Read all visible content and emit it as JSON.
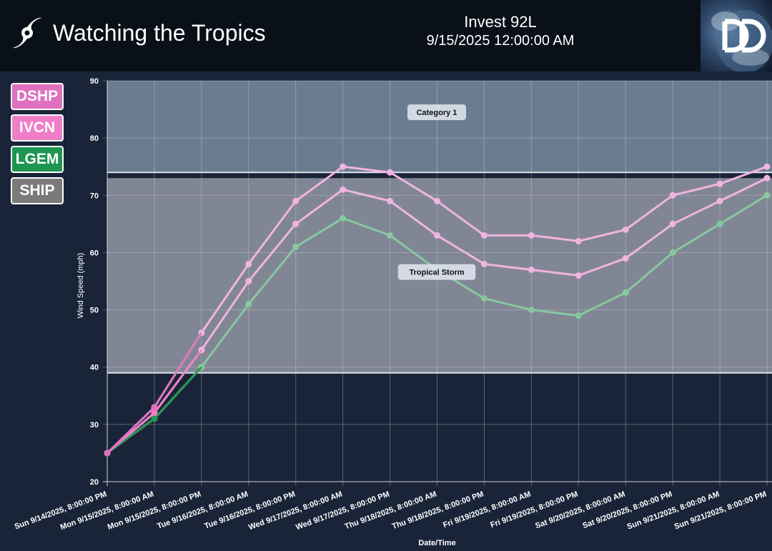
{
  "header": {
    "app_title": "Watching the Tropics",
    "storm_name": "Invest 92L",
    "timestamp": "9/15/2025 12:00:00 AM",
    "logo_text": "DD"
  },
  "legend": [
    {
      "label": "DSHP",
      "color": "#e070c0"
    },
    {
      "label": "IVCN",
      "color": "#ef7ec8"
    },
    {
      "label": "LGEM",
      "color": "#1e9650"
    },
    {
      "label": "SHIP",
      "color": "#7a7a7a"
    }
  ],
  "chart_data": {
    "type": "line",
    "xlabel": "Date/Time",
    "ylabel": "Wind Speed (mph)",
    "ylim": [
      20,
      90
    ],
    "yticks": [
      20,
      30,
      40,
      50,
      60,
      70,
      80,
      90
    ],
    "grid": true,
    "categories": [
      "Sun 9/14/2025, 8:00:00 PM",
      "Mon 9/15/2025, 8:00:00 AM",
      "Mon 9/15/2025, 8:00:00 PM",
      "Tue 9/16/2025, 8:00:00 AM",
      "Tue 9/16/2025, 8:00:00 PM",
      "Wed 9/17/2025, 8:00:00 AM",
      "Wed 9/17/2025, 8:00:00 PM",
      "Thu 9/18/2025, 8:00:00 AM",
      "Thu 9/18/2025, 8:00:00 PM",
      "Fri 9/19/2025, 8:00:00 AM",
      "Fri 9/19/2025, 8:00:00 PM",
      "Sat 9/20/2025, 8:00:00 AM",
      "Sat 9/20/2025, 8:00:00 PM",
      "Sun 9/21/2025, 8:00:00 AM",
      "Sun 9/21/2025, 8:00:00 PM"
    ],
    "bands": [
      {
        "label": "Tropical Storm",
        "from": 39,
        "to": 73,
        "color": "#8a8f9c"
      },
      {
        "label": "Category 1",
        "from": 74,
        "to": 90,
        "color": "#72849a"
      }
    ],
    "series": [
      {
        "name": "LGEM",
        "color": "#86c8a0",
        "values": [
          25,
          31,
          40,
          51,
          61,
          66,
          63,
          57,
          52,
          50,
          49,
          53,
          60,
          65,
          70
        ]
      },
      {
        "name": "IVCN",
        "color": "#f0b4e0",
        "values": [
          25,
          32,
          43,
          55,
          65,
          71,
          69,
          63,
          58,
          57,
          56,
          59,
          65,
          69,
          73
        ]
      },
      {
        "name": "DSHP",
        "color": "#f0b4e0",
        "values": [
          25,
          33,
          46,
          58,
          69,
          75,
          74,
          69,
          63,
          63,
          62,
          64,
          70,
          72,
          75
        ]
      }
    ]
  }
}
